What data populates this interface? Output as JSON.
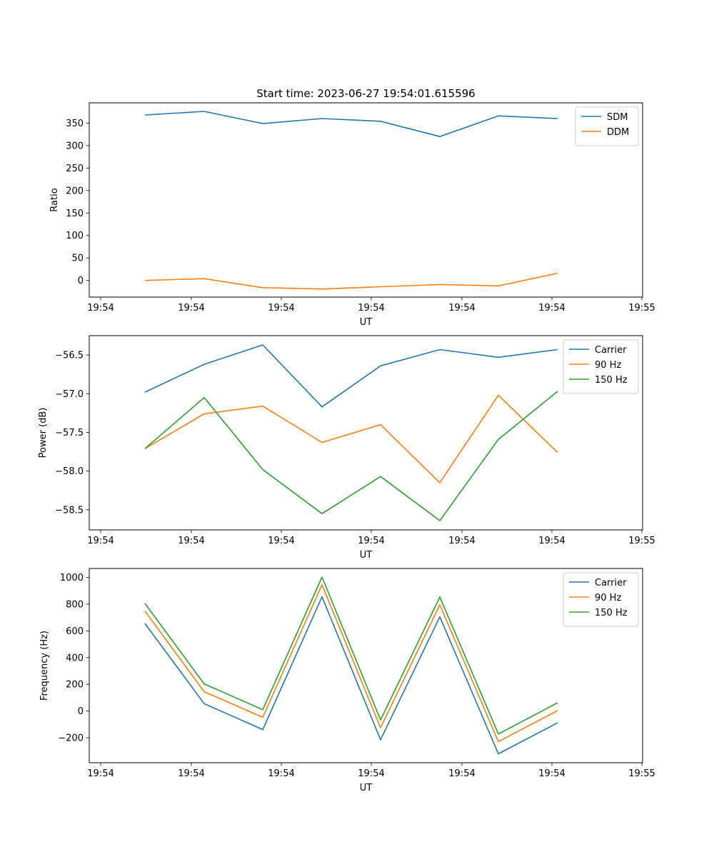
{
  "figure": {
    "title": "Start time: 2023-06-27 19:54:01.615596"
  },
  "chart_data": [
    {
      "type": "line",
      "title": "Start time: 2023-06-27 19:54:01.615596",
      "xlabel": "UT",
      "ylabel": "Ratio",
      "x_tick_labels": [
        "19:54",
        "19:54",
        "19:54",
        "19:54",
        "19:54",
        "19:54",
        "19:55"
      ],
      "y_ticks": [
        0,
        50,
        100,
        150,
        200,
        250,
        300,
        350
      ],
      "ylim": [
        -37,
        395
      ],
      "legend_position": "upper right",
      "series": [
        {
          "name": "SDM",
          "color": "#1f77b4",
          "values": [
            368,
            376,
            349,
            360,
            354,
            320,
            366,
            360
          ]
        },
        {
          "name": "DDM",
          "color": "#ff7f0e",
          "values": [
            0,
            4,
            -16,
            -19,
            -14,
            -9,
            -12,
            16
          ]
        }
      ]
    },
    {
      "type": "line",
      "title": "",
      "xlabel": "UT",
      "ylabel": "Power (dB)",
      "x_tick_labels": [
        "19:54",
        "19:54",
        "19:54",
        "19:54",
        "19:54",
        "19:54",
        "19:55"
      ],
      "y_ticks": [
        -58.5,
        -58.0,
        -57.5,
        -57.0,
        -56.5
      ],
      "y_tick_labels": [
        "−58.5",
        "−58.0",
        "−57.5",
        "−57.0",
        "−56.5"
      ],
      "ylim": [
        -58.76,
        -56.25
      ],
      "legend_position": "upper right",
      "series": [
        {
          "name": "Carrier",
          "color": "#1f77b4",
          "values": [
            -56.98,
            -56.62,
            -56.37,
            -57.17,
            -56.64,
            -56.43,
            -56.53,
            -56.43
          ]
        },
        {
          "name": "90 Hz",
          "color": "#ff7f0e",
          "values": [
            -57.71,
            -57.26,
            -57.16,
            -57.63,
            -57.4,
            -58.15,
            -57.02,
            -57.76
          ]
        },
        {
          "name": "150 Hz",
          "color": "#2ca02c",
          "values": [
            -57.71,
            -57.05,
            -57.98,
            -58.55,
            -58.07,
            -58.64,
            -57.59,
            -56.97
          ]
        }
      ]
    },
    {
      "type": "line",
      "title": "",
      "xlabel": "UT",
      "ylabel": "Frequency (Hz)",
      "x_tick_labels": [
        "19:54",
        "19:54",
        "19:54",
        "19:54",
        "19:54",
        "19:54",
        "19:55"
      ],
      "y_ticks": [
        -200,
        0,
        200,
        400,
        600,
        800,
        1000
      ],
      "y_tick_labels": [
        "−200",
        "0",
        "200",
        "400",
        "600",
        "800",
        "1000"
      ],
      "ylim": [
        -387,
        1067
      ],
      "legend_position": "upper right",
      "series": [
        {
          "name": "Carrier",
          "color": "#1f77b4",
          "values": [
            655,
            55,
            -139,
            855,
            -215,
            705,
            -320,
            -88
          ]
        },
        {
          "name": "90 Hz",
          "color": "#ff7f0e",
          "values": [
            748,
            145,
            -47,
            945,
            -125,
            795,
            -229,
            3
          ]
        },
        {
          "name": "150 Hz",
          "color": "#2ca02c",
          "values": [
            805,
            203,
            10,
            1003,
            -67,
            853,
            -172,
            62
          ]
        }
      ]
    }
  ],
  "y_tick_labels_panel1": [
    "0",
    "50",
    "100",
    "150",
    "200",
    "250",
    "300",
    "350"
  ]
}
